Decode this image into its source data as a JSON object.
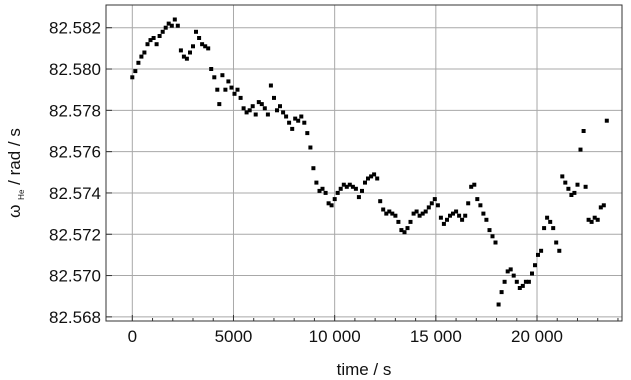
{
  "chart_data": {
    "type": "scatter",
    "xlabel": "time / s",
    "ylabel": {
      "symbol": "ω",
      "subscript": "He",
      "rest": " / rad / s"
    },
    "xlim": [
      -1300,
      24200
    ],
    "ylim": [
      82.5678,
      82.5831
    ],
    "x_ticks": [
      0,
      5000,
      10000,
      15000,
      20000
    ],
    "x_tick_labels": [
      "0",
      "5000",
      "10 000",
      "15 000",
      "20 000"
    ],
    "y_ticks": [
      82.568,
      82.57,
      82.572,
      82.574,
      82.576,
      82.578,
      82.58,
      82.582
    ],
    "y_tick_labels": [
      "82.568",
      "82.570",
      "82.572",
      "82.574",
      "82.576",
      "82.578",
      "82.580",
      "82.582"
    ],
    "grid": true,
    "series": [
      {
        "color": "#000000",
        "points": [
          [
            0,
            82.5796
          ],
          [
            150,
            82.5799
          ],
          [
            300,
            82.5803
          ],
          [
            450,
            82.5806
          ],
          [
            600,
            82.5808
          ],
          [
            750,
            82.5812
          ],
          [
            900,
            82.5814
          ],
          [
            1050,
            82.5815
          ],
          [
            1200,
            82.5812
          ],
          [
            1350,
            82.5816
          ],
          [
            1500,
            82.5818
          ],
          [
            1650,
            82.582
          ],
          [
            1800,
            82.5822
          ],
          [
            1950,
            82.5821
          ],
          [
            2100,
            82.5824
          ],
          [
            2250,
            82.5821
          ],
          [
            2400,
            82.5809
          ],
          [
            2550,
            82.5806
          ],
          [
            2700,
            82.5805
          ],
          [
            2850,
            82.5808
          ],
          [
            3000,
            82.5811
          ],
          [
            3150,
            82.5818
          ],
          [
            3300,
            82.5815
          ],
          [
            3450,
            82.5812
          ],
          [
            3600,
            82.5811
          ],
          [
            3750,
            82.581
          ],
          [
            3900,
            82.58
          ],
          [
            4050,
            82.5796
          ],
          [
            4200,
            82.579
          ],
          [
            4300,
            82.5783
          ],
          [
            4450,
            82.5797
          ],
          [
            4600,
            82.579
          ],
          [
            4750,
            82.5794
          ],
          [
            4900,
            82.5791
          ],
          [
            5050,
            82.5788
          ],
          [
            5200,
            82.579
          ],
          [
            5350,
            82.5786
          ],
          [
            5500,
            82.5781
          ],
          [
            5650,
            82.5779
          ],
          [
            5800,
            82.578
          ],
          [
            5950,
            82.5782
          ],
          [
            6100,
            82.5778
          ],
          [
            6250,
            82.5784
          ],
          [
            6400,
            82.5783
          ],
          [
            6550,
            82.5781
          ],
          [
            6700,
            82.5778
          ],
          [
            6850,
            82.5792
          ],
          [
            7000,
            82.5786
          ],
          [
            7150,
            82.578
          ],
          [
            7300,
            82.5782
          ],
          [
            7450,
            82.5779
          ],
          [
            7600,
            82.5777
          ],
          [
            7750,
            82.5774
          ],
          [
            7900,
            82.5771
          ],
          [
            8050,
            82.5776
          ],
          [
            8200,
            82.5775
          ],
          [
            8350,
            82.5777
          ],
          [
            8500,
            82.5774
          ],
          [
            8650,
            82.5769
          ],
          [
            8800,
            82.5762
          ],
          [
            8950,
            82.5752
          ],
          [
            9100,
            82.5745
          ],
          [
            9250,
            82.5741
          ],
          [
            9400,
            82.5742
          ],
          [
            9550,
            82.574
          ],
          [
            9700,
            82.5735
          ],
          [
            9850,
            82.5734
          ],
          [
            10000,
            82.5737
          ],
          [
            10150,
            82.574
          ],
          [
            10300,
            82.5742
          ],
          [
            10450,
            82.5744
          ],
          [
            10600,
            82.5743
          ],
          [
            10750,
            82.5744
          ],
          [
            10900,
            82.5743
          ],
          [
            11050,
            82.5742
          ],
          [
            11200,
            82.5738
          ],
          [
            11350,
            82.5741
          ],
          [
            11500,
            82.5745
          ],
          [
            11650,
            82.5747
          ],
          [
            11800,
            82.5748
          ],
          [
            11950,
            82.5749
          ],
          [
            12100,
            82.5747
          ],
          [
            12250,
            82.5736
          ],
          [
            12400,
            82.5732
          ],
          [
            12550,
            82.573
          ],
          [
            12700,
            82.5731
          ],
          [
            12850,
            82.573
          ],
          [
            13000,
            82.5729
          ],
          [
            13150,
            82.5726
          ],
          [
            13300,
            82.5722
          ],
          [
            13450,
            82.5721
          ],
          [
            13600,
            82.5723
          ],
          [
            13750,
            82.5726
          ],
          [
            13900,
            82.573
          ],
          [
            14050,
            82.5731
          ],
          [
            14200,
            82.5729
          ],
          [
            14350,
            82.573
          ],
          [
            14500,
            82.5731
          ],
          [
            14650,
            82.5733
          ],
          [
            14800,
            82.5735
          ],
          [
            14950,
            82.5737
          ],
          [
            15100,
            82.5734
          ],
          [
            15250,
            82.5728
          ],
          [
            15400,
            82.5725
          ],
          [
            15550,
            82.5727
          ],
          [
            15700,
            82.5729
          ],
          [
            15850,
            82.573
          ],
          [
            16000,
            82.5731
          ],
          [
            16150,
            82.5729
          ],
          [
            16300,
            82.5727
          ],
          [
            16450,
            82.5729
          ],
          [
            16600,
            82.5735
          ],
          [
            16750,
            82.5743
          ],
          [
            16900,
            82.5744
          ],
          [
            17050,
            82.5737
          ],
          [
            17200,
            82.5734
          ],
          [
            17350,
            82.573
          ],
          [
            17500,
            82.5727
          ],
          [
            17650,
            82.5722
          ],
          [
            17800,
            82.5719
          ],
          [
            17950,
            82.5716
          ],
          [
            18100,
            82.5686
          ],
          [
            18250,
            82.5692
          ],
          [
            18400,
            82.5697
          ],
          [
            18550,
            82.5702
          ],
          [
            18700,
            82.5703
          ],
          [
            18850,
            82.57
          ],
          [
            19000,
            82.5697
          ],
          [
            19150,
            82.5694
          ],
          [
            19300,
            82.5695
          ],
          [
            19450,
            82.5697
          ],
          [
            19600,
            82.5697
          ],
          [
            19750,
            82.5701
          ],
          [
            19900,
            82.5705
          ],
          [
            20050,
            82.571
          ],
          [
            20200,
            82.5712
          ],
          [
            20350,
            82.5723
          ],
          [
            20500,
            82.5728
          ],
          [
            20650,
            82.5726
          ],
          [
            20800,
            82.5723
          ],
          [
            20950,
            82.5716
          ],
          [
            21100,
            82.5712
          ],
          [
            21250,
            82.5748
          ],
          [
            21400,
            82.5745
          ],
          [
            21550,
            82.5742
          ],
          [
            21700,
            82.5739
          ],
          [
            21850,
            82.574
          ],
          [
            22000,
            82.5744
          ],
          [
            22150,
            82.5761
          ],
          [
            22300,
            82.577
          ],
          [
            22400,
            82.5743
          ],
          [
            22550,
            82.5727
          ],
          [
            22700,
            82.5726
          ],
          [
            22850,
            82.5728
          ],
          [
            23000,
            82.5727
          ],
          [
            23150,
            82.5733
          ],
          [
            23300,
            82.5734
          ],
          [
            23450,
            82.5775
          ]
        ]
      }
    ]
  }
}
